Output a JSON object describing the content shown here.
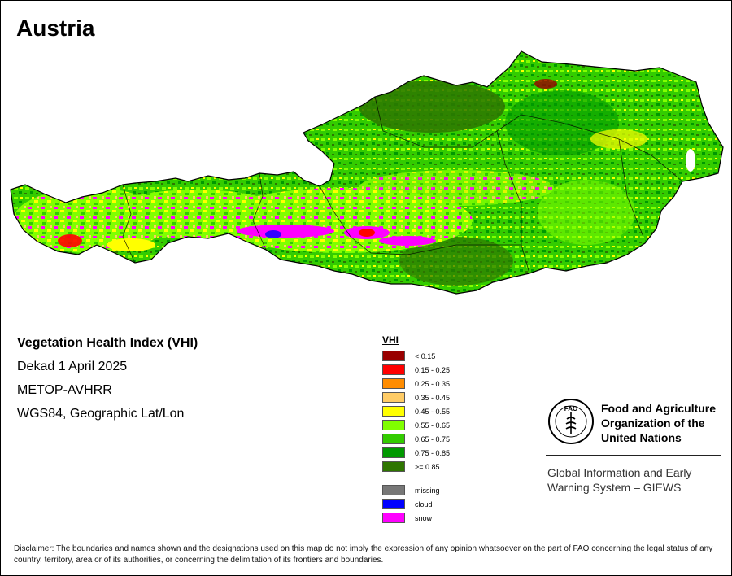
{
  "title": "Austria",
  "info": {
    "index_name": "Vegetation Health Index (VHI)",
    "period": "Dekad 1 April 2025",
    "sensor": "METOP-AVHRR",
    "projection": "WGS84, Geographic Lat/Lon"
  },
  "legend": {
    "title": "VHI",
    "classes": [
      {
        "label": "< 0.15",
        "color": "#990000"
      },
      {
        "label": "0.15 - 0.25",
        "color": "#ff0000"
      },
      {
        "label": "0.25 - 0.35",
        "color": "#ff8c00"
      },
      {
        "label": "0.35 - 0.45",
        "color": "#ffcc66"
      },
      {
        "label": "0.45 - 0.55",
        "color": "#ffff00"
      },
      {
        "label": "0.55 - 0.65",
        "color": "#80ff00"
      },
      {
        "label": "0.65 - 0.75",
        "color": "#33cc00"
      },
      {
        "label": "0.75 - 0.85",
        "color": "#009900"
      },
      {
        "label": ">= 0.85",
        "color": "#2e7500"
      }
    ],
    "other": [
      {
        "label": "missing",
        "color": "#777777"
      },
      {
        "label": "cloud",
        "color": "#0000ff"
      },
      {
        "label": "snow",
        "color": "#ff00ff"
      }
    ]
  },
  "organization": {
    "name_line1": "Food and Agriculture",
    "name_line2": "Organization of the",
    "name_line3": "United Nations",
    "logo_text": "FAO",
    "program_line1": "Global Information and Early",
    "program_line2": "Warning System – GIEWS"
  },
  "disclaimer": "Disclaimer: The boundaries and names shown and the designations used on this map do not imply the expression of any opinion whatsoever on the part of FAO concerning the legal status of any country, territory, area or of its authorities, or concerning the delimitation of its frontiers and boundaries."
}
